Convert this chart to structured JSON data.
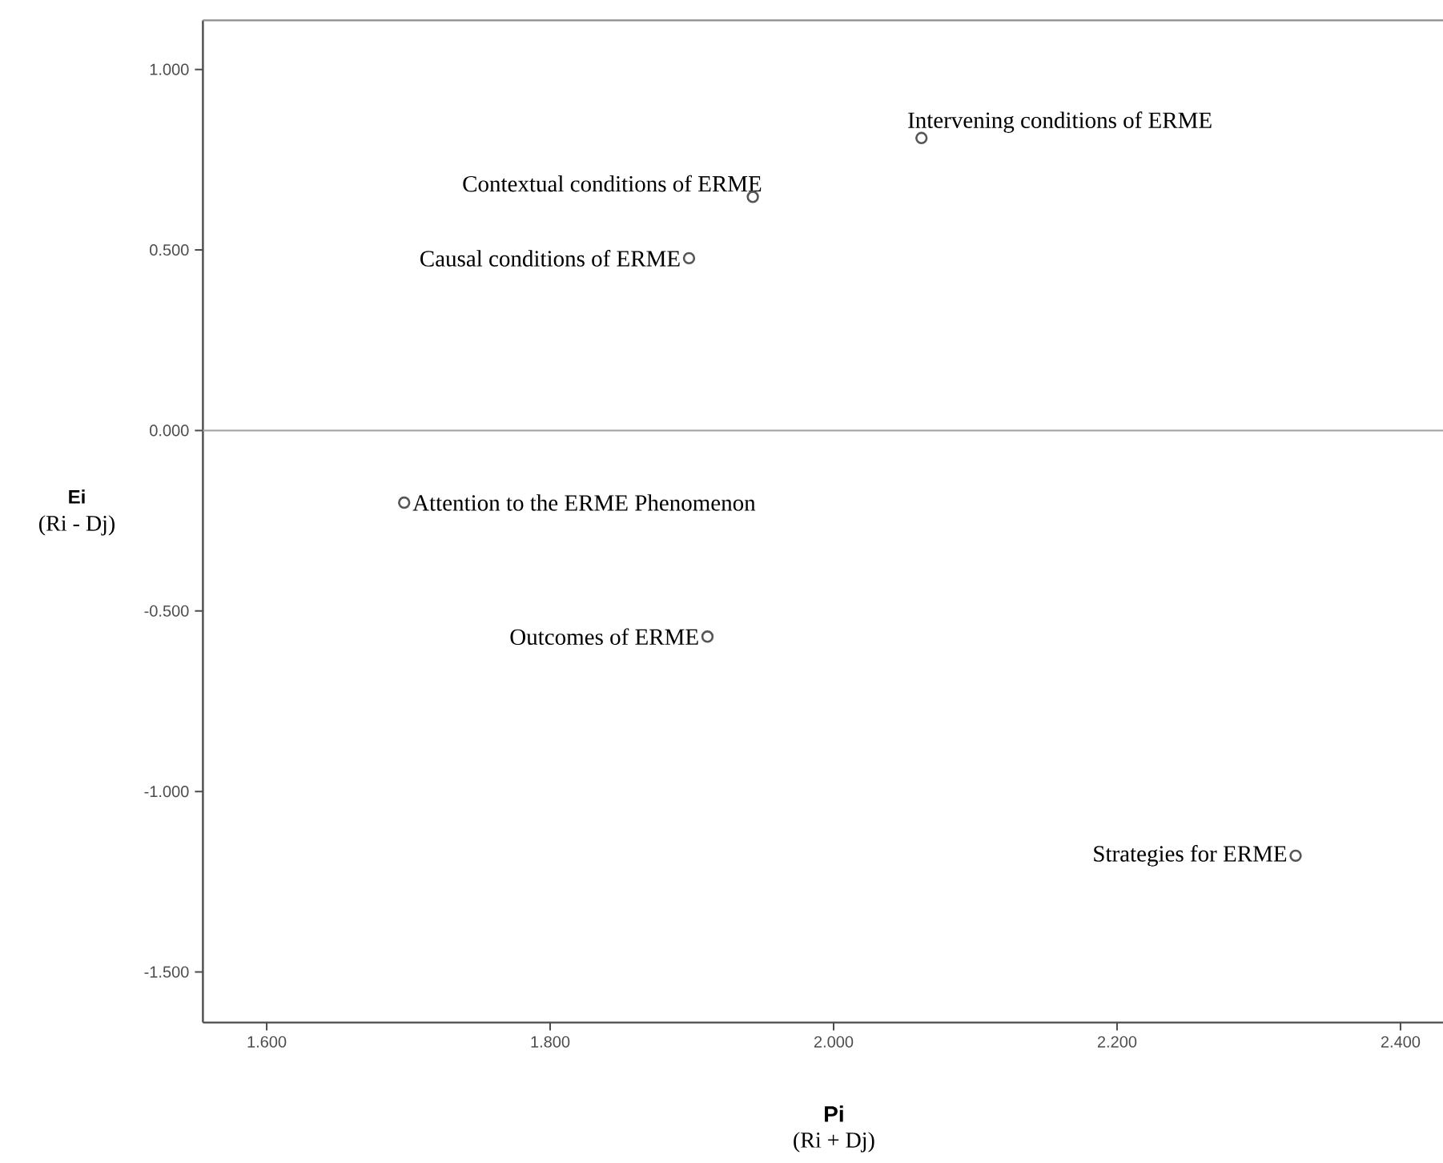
{
  "chart_data": {
    "type": "scatter",
    "xlabel": "Pi",
    "ylabel": "Ei",
    "xlim": [
      1.555,
      2.43
    ],
    "ylim": [
      -1.64,
      1.136
    ],
    "xticks": [
      {
        "value": 1.6,
        "label": "1.600"
      },
      {
        "value": 1.8,
        "label": "1.800"
      },
      {
        "value": 2.0,
        "label": "2.000"
      },
      {
        "value": 2.2,
        "label": "2.200"
      },
      {
        "value": 2.4,
        "label": "2.400"
      }
    ],
    "yticks": [
      {
        "value": -1.5,
        "label": "-1.500"
      },
      {
        "value": -1.0,
        "label": "-1.000"
      },
      {
        "value": -0.5,
        "label": "-0.500"
      },
      {
        "value": 0,
        "label": "0.000"
      },
      {
        "value": 0.5,
        "label": "0.500"
      },
      {
        "value": 1.0,
        "label": "1.000"
      }
    ],
    "marker": "circle",
    "ref_lines": [
      {
        "axis": "y",
        "value": 0,
        "color": "#a0a0a0"
      }
    ],
    "series": [
      {
        "color": "#555555",
        "x": [
          2.062,
          1.943,
          1.898,
          1.697,
          1.911,
          2.326
        ],
        "values": [
          0.81,
          0.647,
          0.477,
          -0.2,
          -0.571,
          -1.178
        ]
      }
    ],
    "annotations": [
      "(Ri + Dj)",
      "(Ri - Dj)",
      {
        "text": "Intervening conditions of ERME",
        "x": 2.062,
        "y": 0.81
      },
      {
        "text": "Contextual conditions of ERME",
        "x": 1.943,
        "y": 0.647
      },
      {
        "text": "Causal conditions of ERME",
        "x": 1.898,
        "y": 0.477
      },
      {
        "text": "Attention to the ERME Phenomenon",
        "x": 1.697,
        "y": -0.2
      },
      {
        "text": "Outcomes of ERME",
        "x": 1.911,
        "y": -0.571
      },
      {
        "text": "Strategies for ERME",
        "x": 2.326,
        "y": -1.178
      }
    ]
  }
}
